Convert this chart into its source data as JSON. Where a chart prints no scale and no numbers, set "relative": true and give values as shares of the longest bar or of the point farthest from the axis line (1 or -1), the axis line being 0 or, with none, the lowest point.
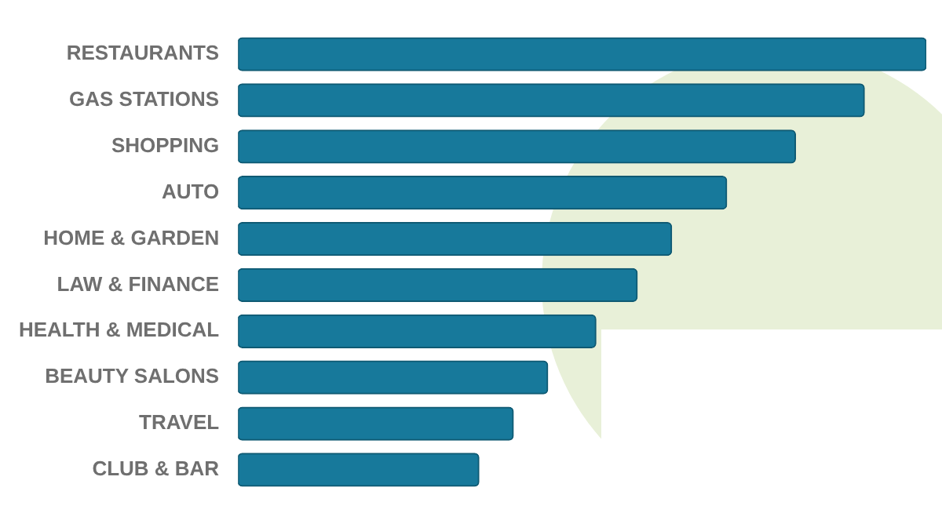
{
  "chart_data": {
    "type": "bar",
    "orientation": "horizontal",
    "relative": true,
    "categories": [
      "RESTAURANTS",
      "GAS STATIONS",
      "SHOPPING",
      "AUTO",
      "HOME & GARDEN",
      "LAW & FINANCE",
      "HEALTH & MEDICAL",
      "BEAUTY SALONS",
      "TRAVEL",
      "CLUB & BAR"
    ],
    "series": [
      {
        "color": "#17799b",
        "values": [
          1,
          0.91,
          0.81,
          0.71,
          0.63,
          0.58,
          0.52,
          0.45,
          0.4,
          0.35
        ]
      }
    ],
    "legend": false
  }
}
